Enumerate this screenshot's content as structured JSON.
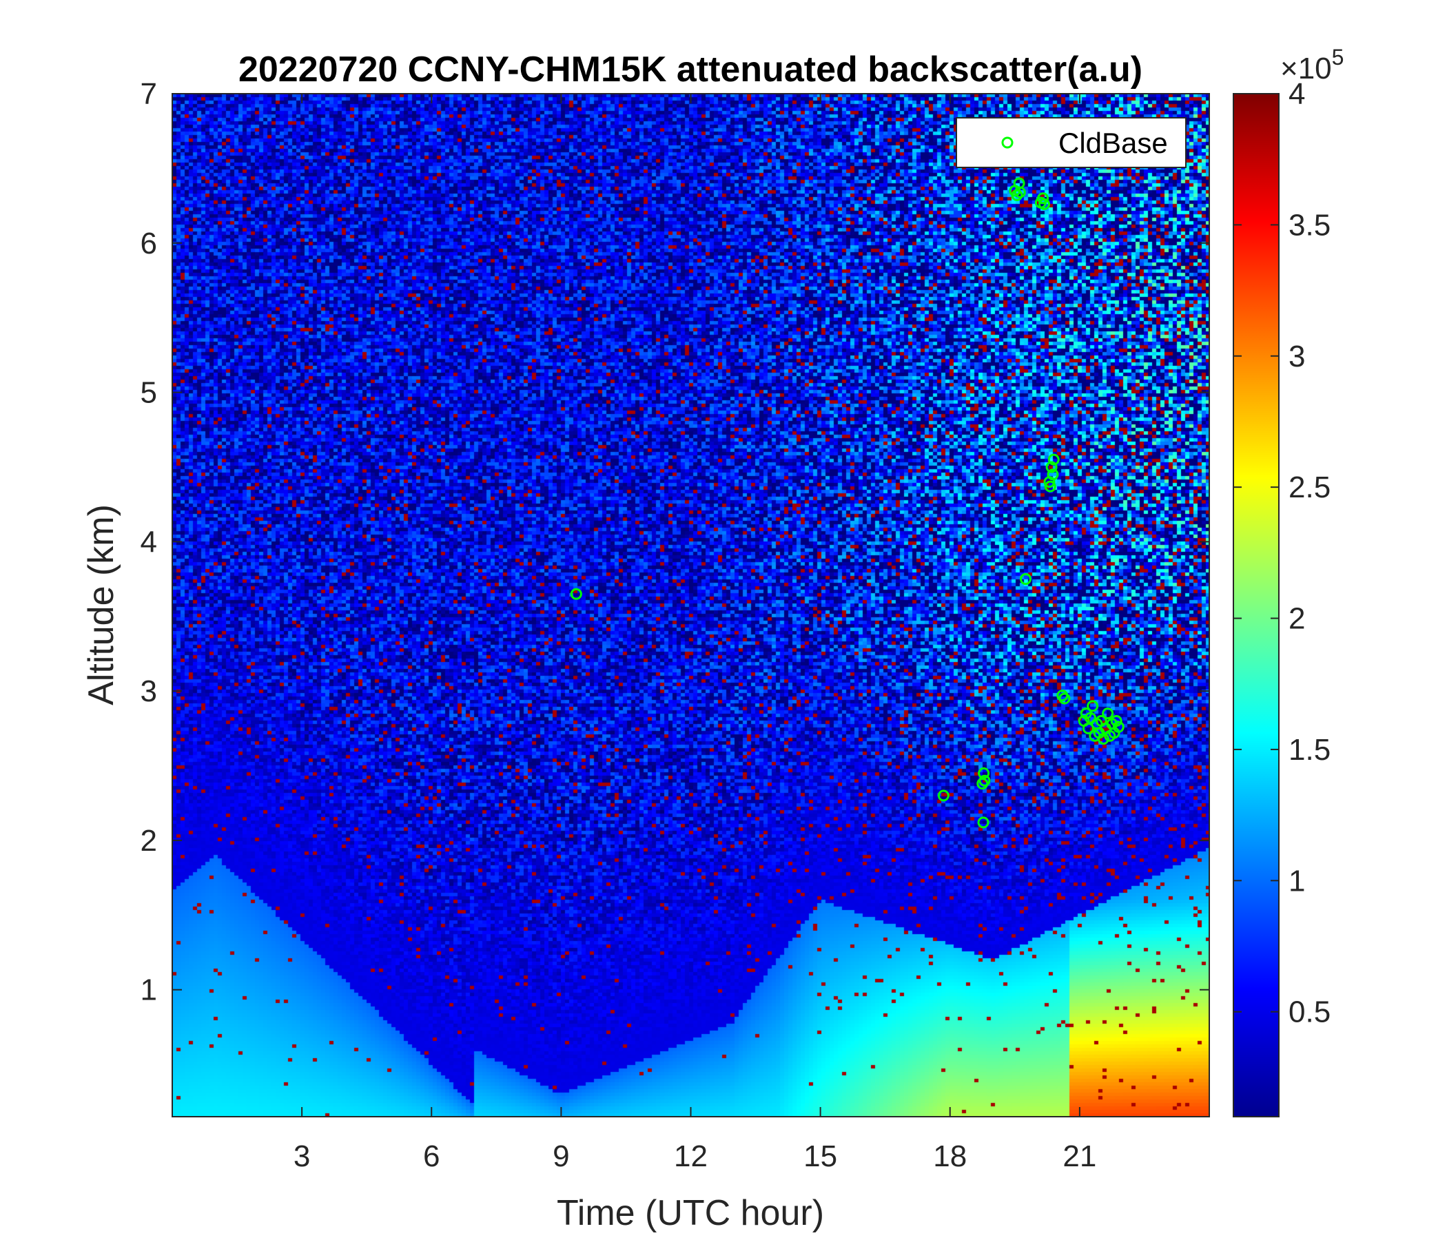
{
  "chart_data": {
    "type": "heatmap",
    "title": "20220720 CCNY-CHM15K attenuated backscatter(a.u)",
    "xlabel": "Time (UTC hour)",
    "ylabel": "Altitude (km)",
    "xlim": [
      0,
      24
    ],
    "ylim": [
      0.15,
      7
    ],
    "xticks": [
      3,
      6,
      9,
      12,
      15,
      18,
      21
    ],
    "yticks": [
      1,
      2,
      3,
      4,
      5,
      6,
      7
    ],
    "colormap": "jet",
    "colorbar": {
      "range": [
        0.1,
        4
      ],
      "ticks": [
        0.5,
        1,
        1.5,
        2,
        2.5,
        3,
        3.5,
        4
      ],
      "multiplier": "×10",
      "exponent": "5"
    },
    "legend": {
      "entries": [
        "CldBase"
      ],
      "placement": "top-right",
      "marker": "circle",
      "color": "#00ff00"
    },
    "series": [
      {
        "name": "CldBase",
        "marker": "circle",
        "color": "#00ff00",
        "points": [
          [
            9.35,
            3.65
          ],
          [
            19.5,
            6.35
          ],
          [
            19.55,
            6.32
          ],
          [
            19.6,
            6.4
          ],
          [
            19.62,
            6.34
          ],
          [
            20.1,
            6.27
          ],
          [
            20.15,
            6.3
          ],
          [
            20.18,
            6.26
          ],
          [
            20.3,
            4.4
          ],
          [
            20.32,
            4.37
          ],
          [
            20.35,
            4.5
          ],
          [
            20.38,
            4.45
          ],
          [
            20.4,
            4.55
          ],
          [
            19.75,
            3.75
          ],
          [
            20.6,
            2.97
          ],
          [
            20.65,
            2.95
          ],
          [
            21.1,
            2.8
          ],
          [
            21.15,
            2.85
          ],
          [
            21.2,
            2.75
          ],
          [
            21.25,
            2.82
          ],
          [
            21.3,
            2.9
          ],
          [
            21.35,
            2.7
          ],
          [
            21.4,
            2.78
          ],
          [
            21.45,
            2.72
          ],
          [
            21.5,
            2.8
          ],
          [
            21.55,
            2.68
          ],
          [
            21.6,
            2.75
          ],
          [
            21.65,
            2.85
          ],
          [
            21.7,
            2.7
          ],
          [
            21.75,
            2.78
          ],
          [
            21.8,
            2.72
          ],
          [
            21.85,
            2.8
          ],
          [
            21.9,
            2.76
          ],
          [
            17.85,
            2.3
          ],
          [
            18.75,
            2.38
          ],
          [
            18.78,
            2.45
          ],
          [
            18.8,
            2.4
          ],
          [
            18.77,
            2.12
          ]
        ]
      }
    ]
  }
}
